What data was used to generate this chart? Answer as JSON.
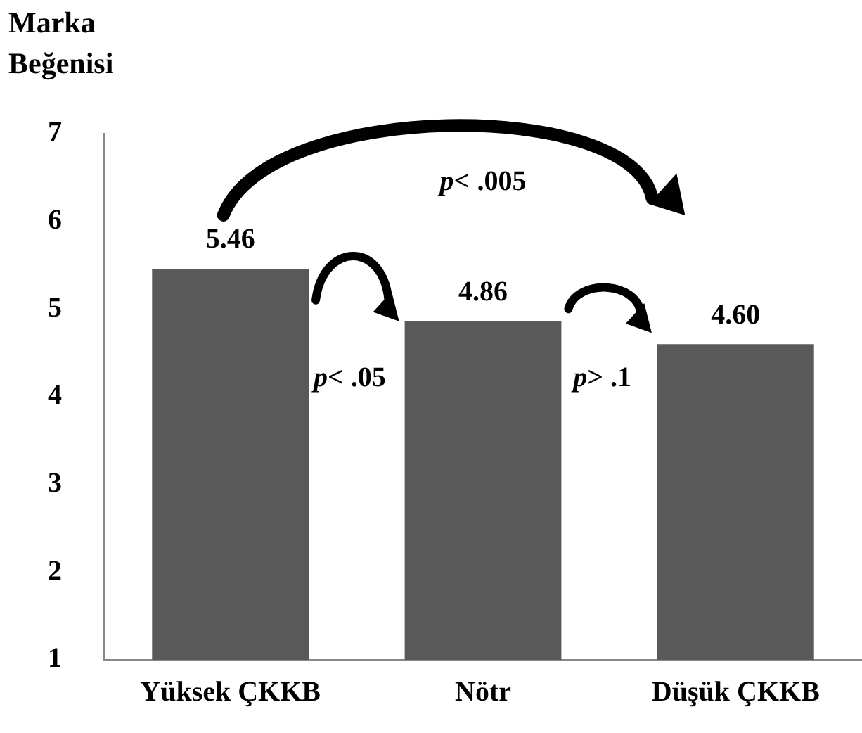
{
  "chart_data": {
    "type": "bar",
    "ylabel": "Marka Beğenisi",
    "categories": [
      "Yüksek ÇKKB",
      "Nötr",
      "Düşük ÇKKB"
    ],
    "values": [
      5.46,
      4.86,
      4.6
    ],
    "value_labels": [
      "5.46",
      "4.86",
      "4.60"
    ],
    "color": "#595959",
    "ylim": [
      1,
      7
    ],
    "yticks": [
      1,
      2,
      3,
      4,
      5,
      6,
      7
    ],
    "grid": false,
    "legend": false,
    "annotations": [
      "p< .005",
      "p< .05",
      "p> .1"
    ]
  }
}
